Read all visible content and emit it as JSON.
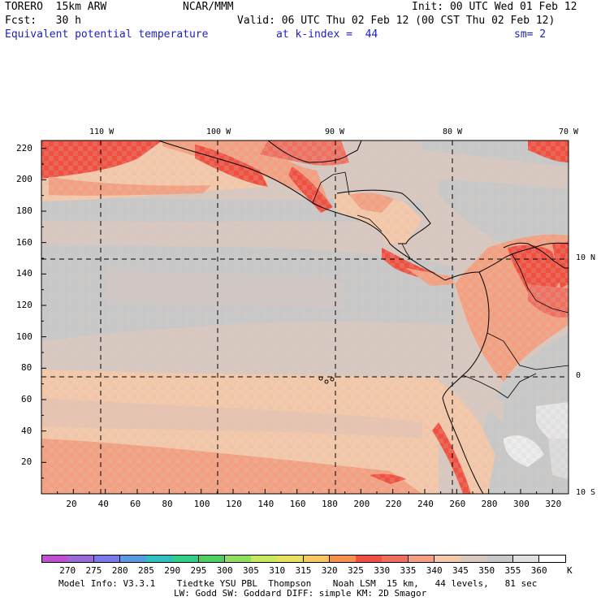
{
  "header": {
    "model": "TORERO  15km ARW",
    "org": "NCAR/MMM",
    "init": "Init: 00 UTC Wed 01 Feb 12",
    "fcst": "Fcst:   30 h",
    "valid": "Valid: 06 UTC Thu 02 Feb 12 (00 CST Thu 02 Feb 12)",
    "field": "Equivalent potential temperature",
    "kindex": "at k-index =  44",
    "smooth": "sm= 2"
  },
  "top_lon_labels": [
    "110 W",
    "100 W",
    "90 W",
    "80 W",
    "70 W"
  ],
  "right_lat_labels": [
    "10 N",
    "0",
    "10 S"
  ],
  "x_ticks": [
    "20",
    "40",
    "60",
    "80",
    "100",
    "120",
    "140",
    "160",
    "180",
    "200",
    "220",
    "240",
    "260",
    "280",
    "300",
    "320"
  ],
  "y_ticks": [
    "220",
    "200",
    "180",
    "160",
    "140",
    "120",
    "100",
    "80",
    "60",
    "40",
    "20"
  ],
  "colorbar": {
    "labels": [
      "270",
      "275",
      "280",
      "285",
      "290",
      "295",
      "300",
      "305",
      "310",
      "315",
      "320",
      "325",
      "330",
      "335",
      "340",
      "345",
      "350",
      "355",
      "360"
    ],
    "unit": "K",
    "colors": [
      "#c050d0",
      "#9a6ad8",
      "#7a7ae8",
      "#5a9ae0",
      "#30c0c0",
      "#30d08a",
      "#50d060",
      "#90e060",
      "#c8e860",
      "#e8e060",
      "#f8c860",
      "#f89050",
      "#f05040",
      "#f07060",
      "#f4a080",
      "#f4c8a8",
      "#d8c8c0",
      "#c8c8c8",
      "#e0e0e0",
      "#ffffff"
    ]
  },
  "footer": {
    "line1": "Model Info: V3.3.1    Tiedtke YSU PBL  Thompson    Noah LSM  15 km,   44 levels,   81 sec",
    "line2": "LW: Godd SW: Goddard DIFF: simple KM: 2D Smagor"
  }
}
